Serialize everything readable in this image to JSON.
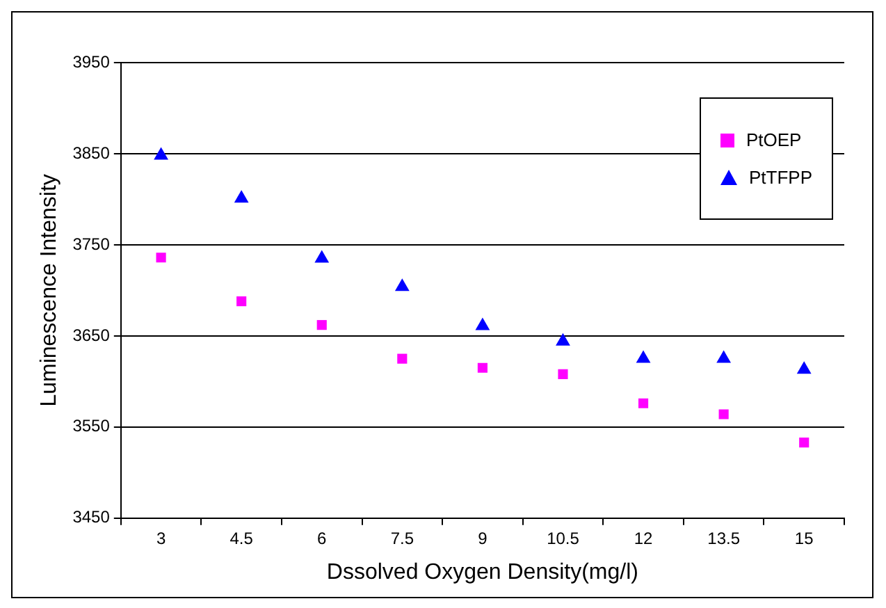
{
  "chart_data": {
    "type": "scatter",
    "xlabel": "Dssolved Oxygen Density(mg/l)",
    "ylabel": "Luminescence Intensity",
    "categories": [
      "3",
      "4.5",
      "6",
      "7.5",
      "9",
      "10.5",
      "12",
      "13.5",
      "15"
    ],
    "series": [
      {
        "name": "PtOEP",
        "color": "#ff00ff",
        "marker": "square",
        "values": [
          3736,
          3688,
          3662,
          3625,
          3615,
          3608,
          3576,
          3564,
          3533
        ]
      },
      {
        "name": "PtTFPP",
        "color": "#0000ff",
        "marker": "triangle",
        "values": [
          3848,
          3801,
          3735,
          3704,
          3661,
          3644,
          3625,
          3625,
          3613
        ]
      }
    ],
    "ylim": [
      3450,
      3950
    ],
    "yticks": [
      3450,
      3550,
      3650,
      3750,
      3850,
      3950
    ],
    "grid": "y",
    "legend": "top right"
  }
}
